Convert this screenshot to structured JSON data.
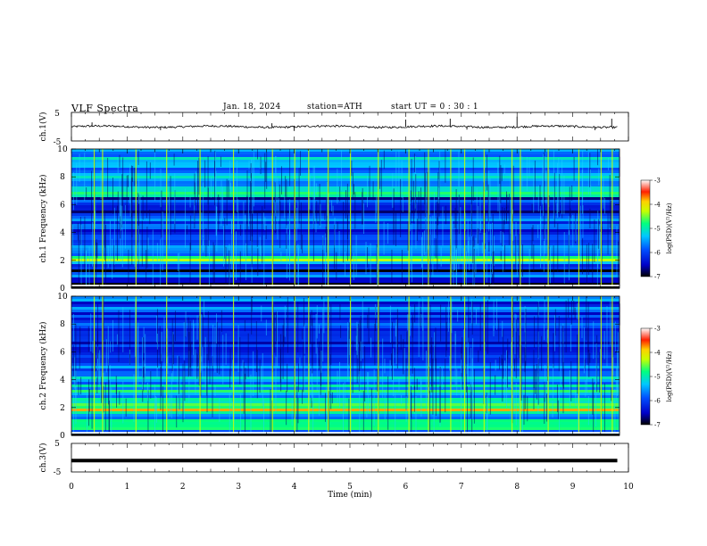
{
  "header": {
    "title": "VLF  Spectra",
    "date": "Jan. 18, 2024",
    "station": "station=ATH",
    "start_ut": "start  UT  =    0  : 30 : 1"
  },
  "chart_data": [
    {
      "type": "line",
      "panel": "ch1-waveform",
      "ylabel": "ch.1(V)",
      "ylim": [
        -5,
        5
      ],
      "yticks": [
        "5",
        "-5"
      ],
      "xlim": [
        0,
        9.8
      ],
      "baseline": 0,
      "noise_amplitude": 0.35,
      "spikes": [
        {
          "x": 0.37,
          "y": 1.5
        },
        {
          "x": 1.6,
          "y": -1.2
        },
        {
          "x": 3.6,
          "y": 1.2
        },
        {
          "x": 4.0,
          "y": -1.5
        },
        {
          "x": 6.0,
          "y": 2.5
        },
        {
          "x": 6.8,
          "y": 2.8
        },
        {
          "x": 7.1,
          "y": -1.0
        },
        {
          "x": 8.0,
          "y": 3.5
        },
        {
          "x": 9.4,
          "y": -1.2
        },
        {
          "x": 9.7,
          "y": 2.8
        }
      ]
    },
    {
      "type": "heatmap",
      "panel": "ch1-spectrogram",
      "ylabel": "ch.1 Frequency  (kHz)",
      "ylim": [
        0,
        10
      ],
      "yticks": [
        "0",
        "2",
        "4",
        "6",
        "8",
        "10"
      ],
      "xlim": [
        0,
        9.8
      ],
      "bands_khz": [
        {
          "from": 0.0,
          "to": 0.7,
          "level": -6.8
        },
        {
          "from": 0.7,
          "to": 1.1,
          "level": -6.0
        },
        {
          "from": 1.1,
          "to": 1.8,
          "level": -6.5
        },
        {
          "from": 1.8,
          "to": 2.4,
          "level": -4.8
        },
        {
          "from": 2.4,
          "to": 3.2,
          "level": -5.5
        },
        {
          "from": 3.2,
          "to": 5.0,
          "level": -6.0
        },
        {
          "from": 5.0,
          "to": 6.5,
          "level": -6.3
        },
        {
          "from": 6.5,
          "to": 7.0,
          "level": -5.0
        },
        {
          "from": 7.0,
          "to": 10.0,
          "level": -5.6
        }
      ],
      "sferic_times_min": [
        0.4,
        0.55,
        1.15,
        1.7,
        2.3,
        2.9,
        3.6,
        4.0,
        4.25,
        4.6,
        5.0,
        5.5,
        6.05,
        6.4,
        6.8,
        7.05,
        7.4,
        7.9,
        8.05,
        8.55,
        9.1,
        9.5,
        9.7
      ]
    },
    {
      "type": "heatmap",
      "panel": "ch2-spectrogram",
      "ylabel": "ch.2 Frequency  (kHz)",
      "ylim": [
        0,
        10
      ],
      "yticks": [
        "0",
        "2",
        "4",
        "6",
        "8",
        "10"
      ],
      "xlim": [
        0,
        9.8
      ],
      "bands_khz": [
        {
          "from": 0.0,
          "to": 1.7,
          "level": -5.3
        },
        {
          "from": 1.7,
          "to": 2.3,
          "level": -4.3
        },
        {
          "from": 2.3,
          "to": 3.5,
          "level": -5.2
        },
        {
          "from": 3.5,
          "to": 5.2,
          "level": -5.5
        },
        {
          "from": 5.2,
          "to": 7.0,
          "level": -6.2
        },
        {
          "from": 7.0,
          "to": 10.0,
          "level": -6.0
        }
      ],
      "sferic_times_min": [
        0.4,
        0.55,
        1.15,
        1.7,
        2.3,
        2.9,
        3.6,
        4.0,
        4.25,
        4.6,
        5.0,
        5.5,
        6.05,
        6.4,
        6.8,
        7.05,
        7.4,
        7.9,
        8.05,
        8.55,
        9.1,
        9.5,
        9.7
      ]
    },
    {
      "type": "line",
      "panel": "ch3-waveform",
      "ylabel": "ch.3(V)",
      "xlabel": "Time  (min)",
      "ylim": [
        -5,
        5
      ],
      "yticks": [
        "5",
        "-5"
      ],
      "xlim": [
        0,
        10
      ],
      "xticks": [
        "0",
        "1",
        "2",
        "3",
        "4",
        "5",
        "6",
        "7",
        "8",
        "9",
        "10"
      ],
      "level": -1.0,
      "line_xlim": [
        0,
        9.8
      ]
    }
  ],
  "colorbars": [
    {
      "label": "log(PSD)(V²/Hz)",
      "ticks": [
        "-3",
        "-4",
        "-5",
        "-6",
        "-7"
      ],
      "range": [
        -7,
        -3
      ]
    },
    {
      "label": "log(PSD)(V²/Hz)",
      "ticks": [
        "-3",
        "-4",
        "-5",
        "-6",
        "-7"
      ],
      "range": [
        -7,
        -3
      ]
    }
  ]
}
